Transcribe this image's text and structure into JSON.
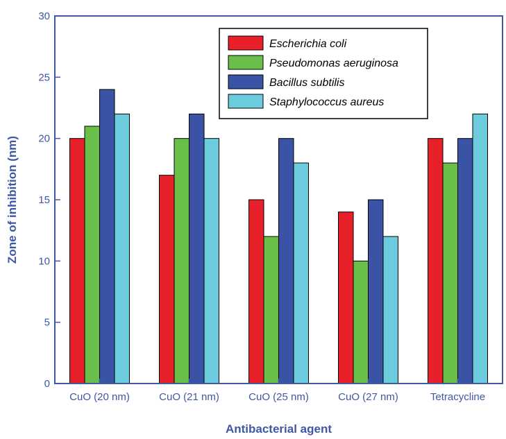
{
  "chart_data": {
    "type": "bar",
    "title": "",
    "xlabel": "Antibacterial agent",
    "ylabel": "Zone of inhibition (nm)",
    "ylim": [
      0,
      30
    ],
    "yticks": [
      "0",
      "5",
      "10",
      "15",
      "20",
      "25",
      "30"
    ],
    "grid": false,
    "legend_position": "top-right",
    "categories": [
      "CuO (20 nm)",
      "CuO (21 nm)",
      "CuO (25 nm)",
      "CuO (27 nm)",
      "Tetracycline"
    ],
    "series": [
      {
        "name": "Escherichia coli",
        "color": "#e8202a",
        "values": [
          20,
          17,
          15,
          14,
          20
        ]
      },
      {
        "name": "Pseudomonas aeruginosa",
        "color": "#6abf4b",
        "values": [
          21,
          20,
          12,
          10,
          18
        ]
      },
      {
        "name": "Bacillus subtilis",
        "color": "#3a53a4",
        "values": [
          24,
          22,
          20,
          15,
          20
        ]
      },
      {
        "name": "Staphylococcus aureus",
        "color": "#6ccbdc",
        "values": [
          22,
          20,
          18,
          12,
          22
        ]
      }
    ],
    "axis_color": "#3e57a6"
  }
}
